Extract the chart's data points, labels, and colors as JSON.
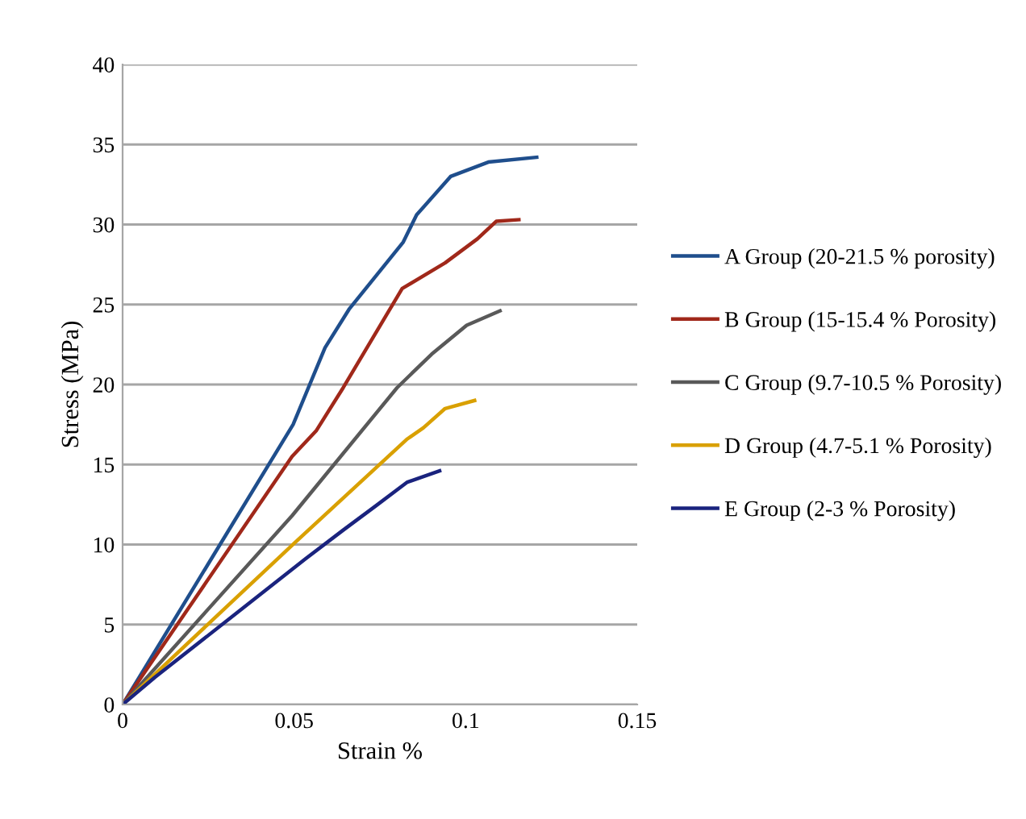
{
  "chart_data": {
    "type": "line",
    "xlabel": "Strain %",
    "ylabel": "Stress (MPa)",
    "xlim": [
      0,
      0.15
    ],
    "xticks": [
      0,
      0.05,
      0.1,
      0.15
    ],
    "ylim": [
      0,
      40
    ],
    "yticks": [
      0,
      5,
      10,
      15,
      20,
      25,
      30,
      35,
      40
    ],
    "grid": "y",
    "legend": "right",
    "marker": "none",
    "line_style": "solid",
    "series": [
      {
        "name": "A Group (20-21.5 % porosity)",
        "color": "#1f4e8c",
        "x": [
          0,
          0.0497,
          0.059,
          0.066,
          0.0818,
          0.0857,
          0.0956,
          0.1066,
          0.1207
        ],
        "values": [
          0,
          17.5,
          22.3,
          24.7,
          28.9,
          30.6,
          33.0,
          33.9,
          34.2
        ]
      },
      {
        "name": "B Group (15-15.4 % Porosity)",
        "color": "#a0281a",
        "x": [
          0,
          0.0494,
          0.0564,
          0.0643,
          0.0815,
          0.094,
          0.1034,
          0.1089,
          0.1155
        ],
        "values": [
          0,
          15.5,
          17.1,
          19.8,
          26.0,
          27.6,
          29.1,
          30.2,
          30.3
        ]
      },
      {
        "name": "C Group (9.7-10.5 % Porosity)",
        "color": "#595959",
        "x": [
          0,
          0.0494,
          0.08,
          0.0901,
          0.1003,
          0.11
        ],
        "values": [
          0,
          11.8,
          19.8,
          21.9,
          23.7,
          24.6
        ]
      },
      {
        "name": "D Group (4.7-5.1 % Porosity)",
        "color": "#d9a000",
        "x": [
          0,
          0.0501,
          0.083,
          0.0877,
          0.094,
          0.1026
        ],
        "values": [
          0,
          10.1,
          16.6,
          17.3,
          18.5,
          19.0
        ]
      },
      {
        "name": "E Group (2-3 % Porosity)",
        "color": "#1a237e",
        "x": [
          0,
          0.0094,
          0.0533,
          0.0643,
          0.0737,
          0.083,
          0.0924
        ],
        "values": [
          0,
          1.7,
          9.1,
          10.9,
          12.4,
          13.9,
          14.6
        ]
      }
    ]
  }
}
